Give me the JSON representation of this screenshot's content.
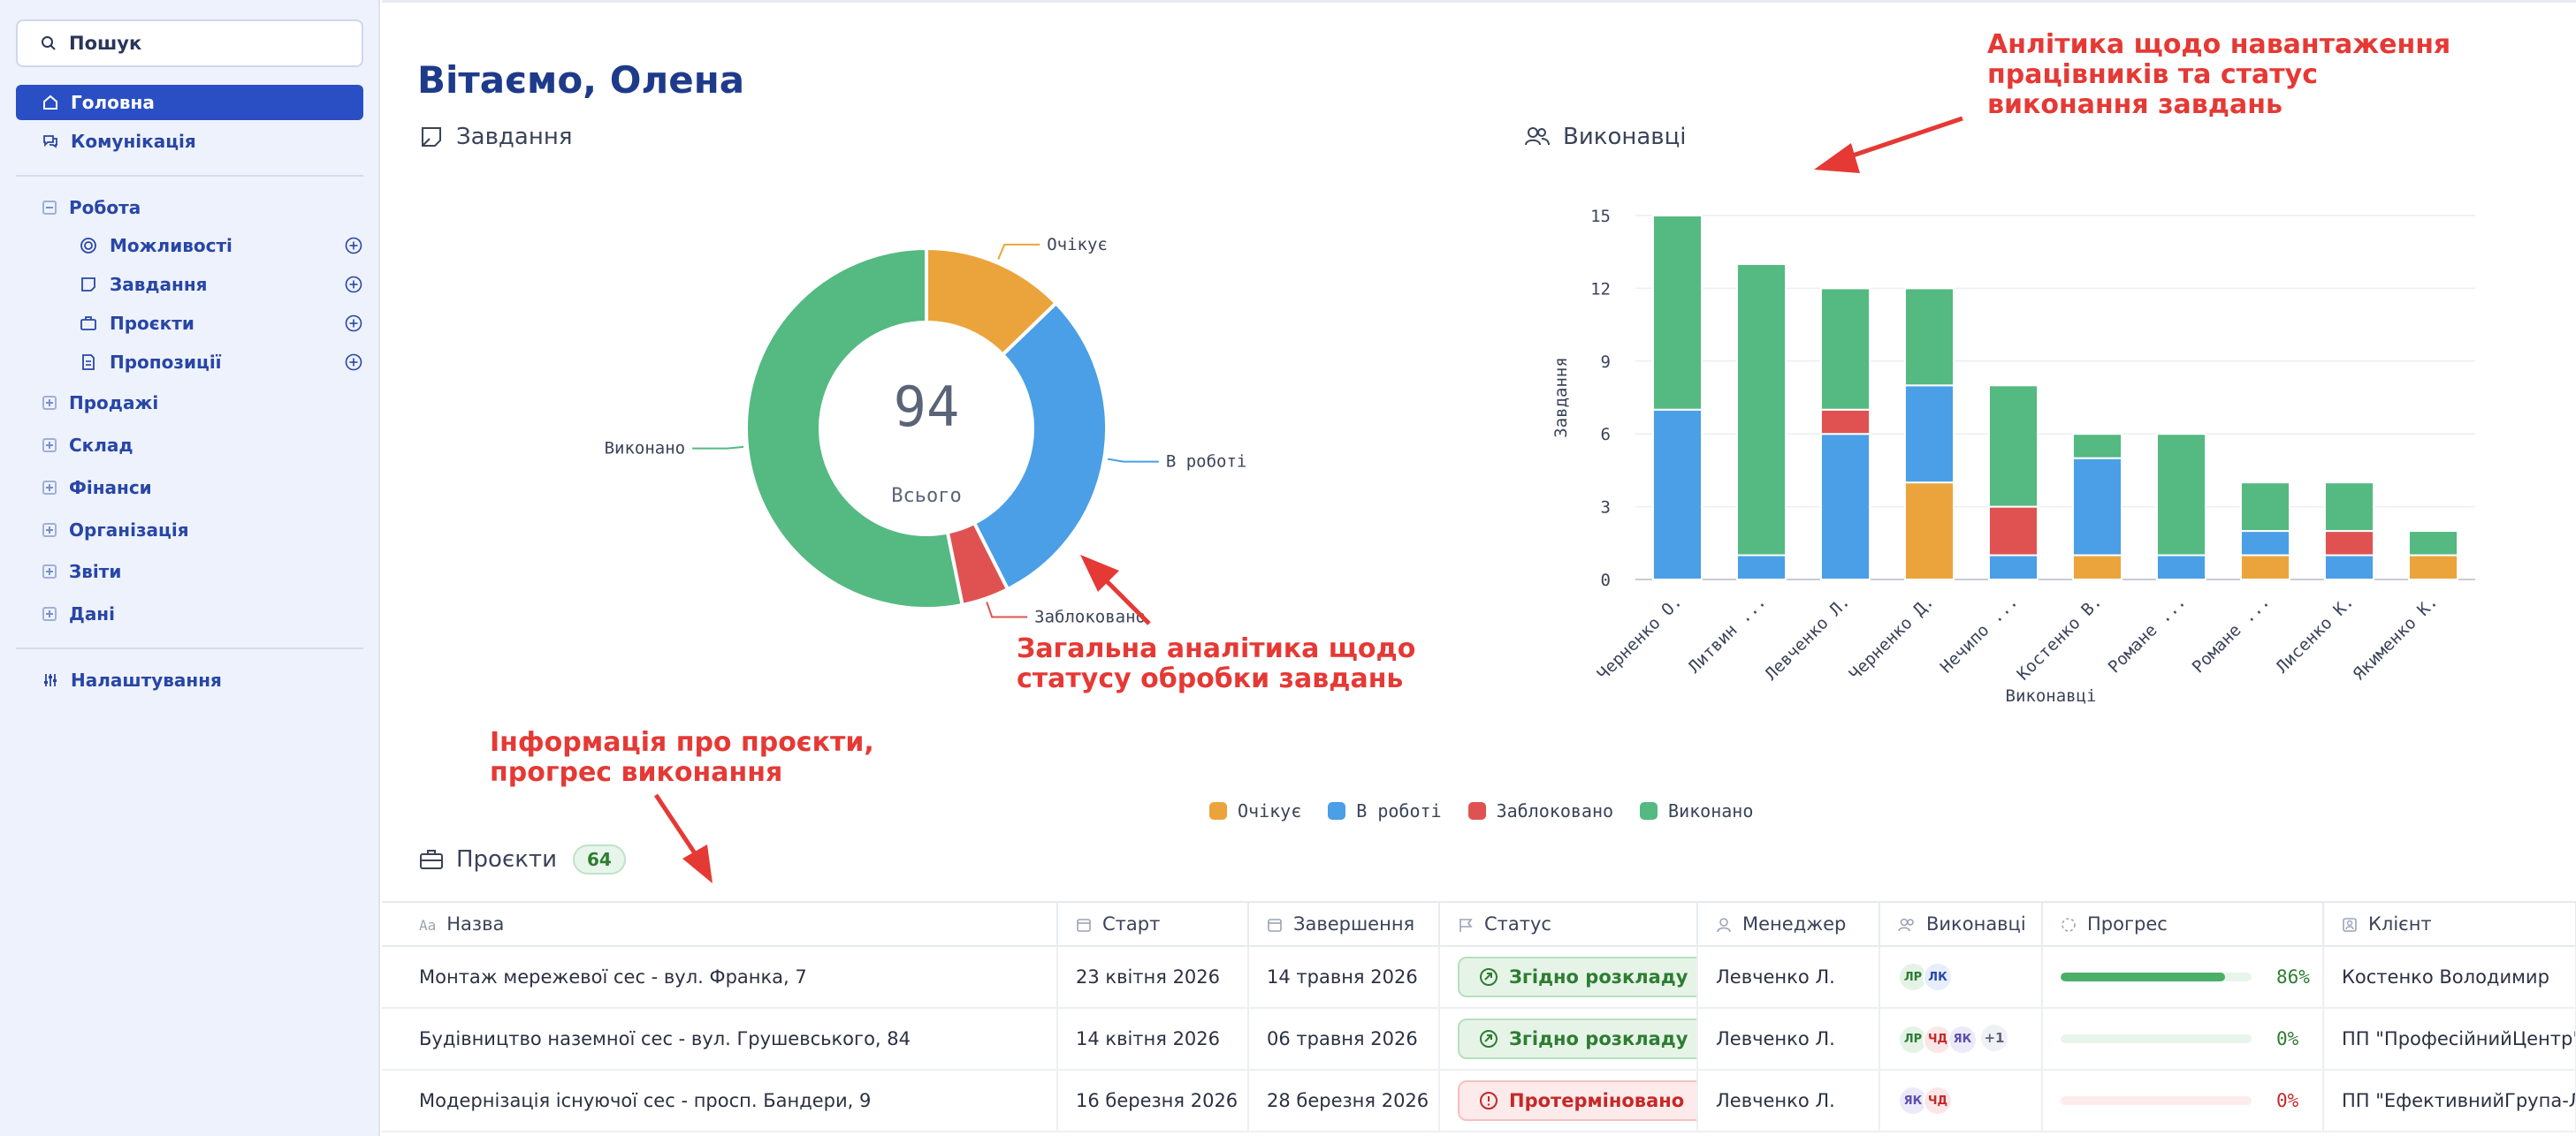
{
  "sidebar": {
    "search_label": "Пошук",
    "items": [
      {
        "label": "Головна",
        "active": true
      },
      {
        "label": "Комунікація"
      }
    ],
    "work": {
      "label": "Робота",
      "children": [
        {
          "label": "Можливості"
        },
        {
          "label": "Завдання"
        },
        {
          "label": "Проєкти"
        },
        {
          "label": "Пропозиції"
        }
      ]
    },
    "groups": [
      {
        "label": "Продажі"
      },
      {
        "label": "Склад"
      },
      {
        "label": "Фінанси"
      },
      {
        "label": "Організація"
      },
      {
        "label": "Звіти"
      },
      {
        "label": "Дані"
      }
    ],
    "settings_label": "Налаштування"
  },
  "main": {
    "greeting": "Вітаємо, Олена",
    "tasks_title": "Завдання",
    "performers_title": "Виконавці",
    "projects_title": "Проєкти",
    "projects_count": "64"
  },
  "annotations": {
    "a1_line1": "Анлітика щодо навантаження",
    "a1_line2": "працівників та статус",
    "a1_line3": "виконання завдань",
    "a2_line1": "Загальна аналітика щодо",
    "a2_line2": "статусу обробки завдань",
    "a3_line1": "Інформація про проєкти,",
    "a3_line2": "прогрес виконання"
  },
  "colors": {
    "pending": "#eba43c",
    "in_progress": "#4a9fe6",
    "blocked": "#e05252",
    "done": "#55b982"
  },
  "chart_data": [
    {
      "type": "pie",
      "variant": "donut",
      "center_value": "94",
      "center_label": "Всього",
      "labels": [
        "Очікує",
        "В роботі",
        "Заблоковано",
        "Виконано"
      ],
      "values": [
        12,
        28,
        4,
        50
      ]
    },
    {
      "type": "bar",
      "stacked": true,
      "xlabel": "Виконавці",
      "ylabel": "Завдання",
      "ylim": [
        0,
        15
      ],
      "yticks": [
        "0",
        "3",
        "6",
        "9",
        "12",
        "15"
      ],
      "categories": [
        "Черненко О.",
        "Литвин ...",
        "Левченко Л.",
        "Черненко Д.",
        "Нечипо ...",
        "Костенко В.",
        "Романе ...",
        "Романе ...",
        "Лисенко К.",
        "Якименко К."
      ],
      "series": [
        {
          "name": "Очікує",
          "values": [
            0,
            0,
            0,
            4,
            0,
            1,
            0,
            1,
            0,
            1
          ]
        },
        {
          "name": "В роботі",
          "values": [
            7,
            1,
            6,
            4,
            1,
            4,
            1,
            1,
            1,
            0
          ]
        },
        {
          "name": "Заблоковано",
          "values": [
            0,
            0,
            1,
            0,
            2,
            0,
            0,
            0,
            1,
            0
          ]
        },
        {
          "name": "Виконано",
          "values": [
            8,
            12,
            5,
            4,
            5,
            1,
            5,
            2,
            2,
            1
          ]
        }
      ],
      "legend_position": "bottom"
    }
  ],
  "table": {
    "headers": {
      "name": "Назва",
      "start": "Старт",
      "end": "Завершення",
      "status": "Статус",
      "manager": "Менеджер",
      "performers": "Виконавці",
      "progress": "Прогрес",
      "client": "Клієнт"
    },
    "rows": [
      {
        "name": "Монтаж мережевої сес - вул. Франка, 7",
        "start": "23 квітня 2026",
        "end": "14 травня 2026",
        "status": "Згідно розкладу",
        "status_kind": "ok",
        "manager": "Левченко Л.",
        "avatars": [
          "ЛР",
          "ЛК"
        ],
        "extra": "",
        "progress": "86%",
        "progress_value": 86,
        "client": "Костенко Володимир"
      },
      {
        "name": "Будівництво наземної сес - вул. Грушевського, 84",
        "start": "14 квітня 2026",
        "end": "06 травня 2026",
        "status": "Згідно розкладу",
        "status_kind": "ok",
        "manager": "Левченко Л.",
        "avatars": [
          "ЛР",
          "ЧД",
          "ЯК"
        ],
        "extra": "+1",
        "progress": "0%",
        "progress_value": 0,
        "client": "ПП \"ПрофесійнийЦентр\""
      },
      {
        "name": "Модернізація існуючої сес - просп. Бандери, 9",
        "start": "16 березня 2026",
        "end": "28 березня 2026",
        "status": "Протерміновано",
        "status_kind": "late",
        "manager": "Левченко Л.",
        "avatars": [
          "ЯК",
          "ЧД"
        ],
        "extra": "",
        "progress": "0%",
        "progress_value": 0,
        "client": "ПП \"ЕфективнийГрупа-Ль"
      }
    ]
  }
}
